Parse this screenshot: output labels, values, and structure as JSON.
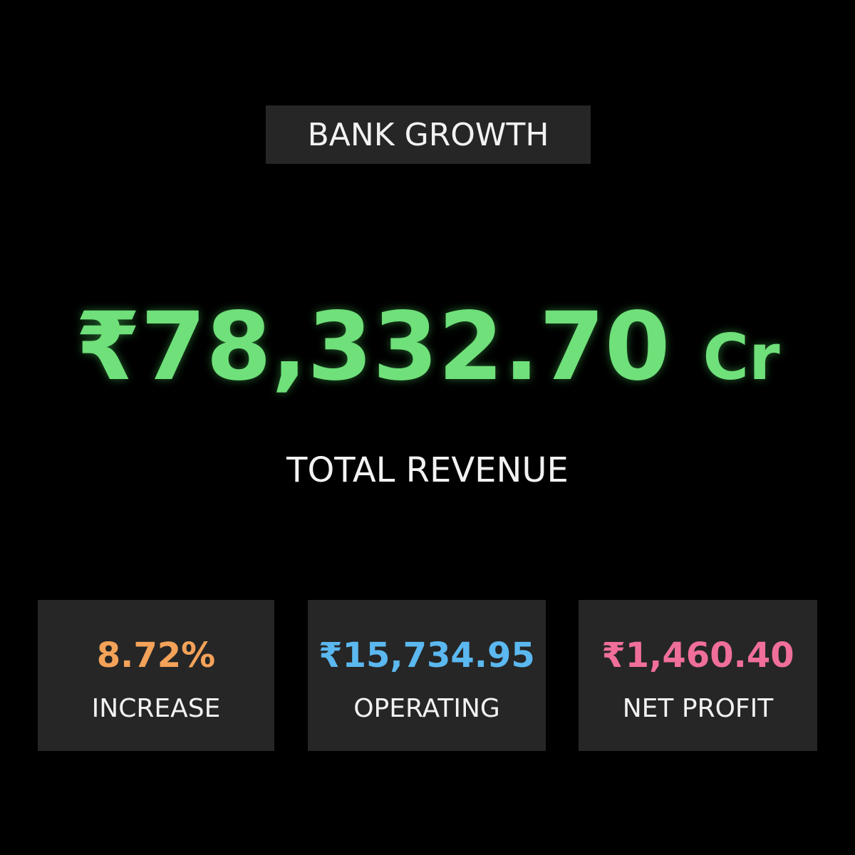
{
  "header": {
    "title": "BANK GROWTH"
  },
  "main": {
    "value": "₹78,332.70",
    "unit": "Cr",
    "label": "TOTAL REVENUE"
  },
  "cards": [
    {
      "value": "8.72%",
      "label": "INCREASE",
      "color": "#f4a259"
    },
    {
      "value": "₹15,734.95",
      "label": "OPERATING",
      "color": "#5bb8f0"
    },
    {
      "value": "₹1,460.40",
      "label": "NET PROFIT",
      "color": "#f06f9a"
    }
  ]
}
